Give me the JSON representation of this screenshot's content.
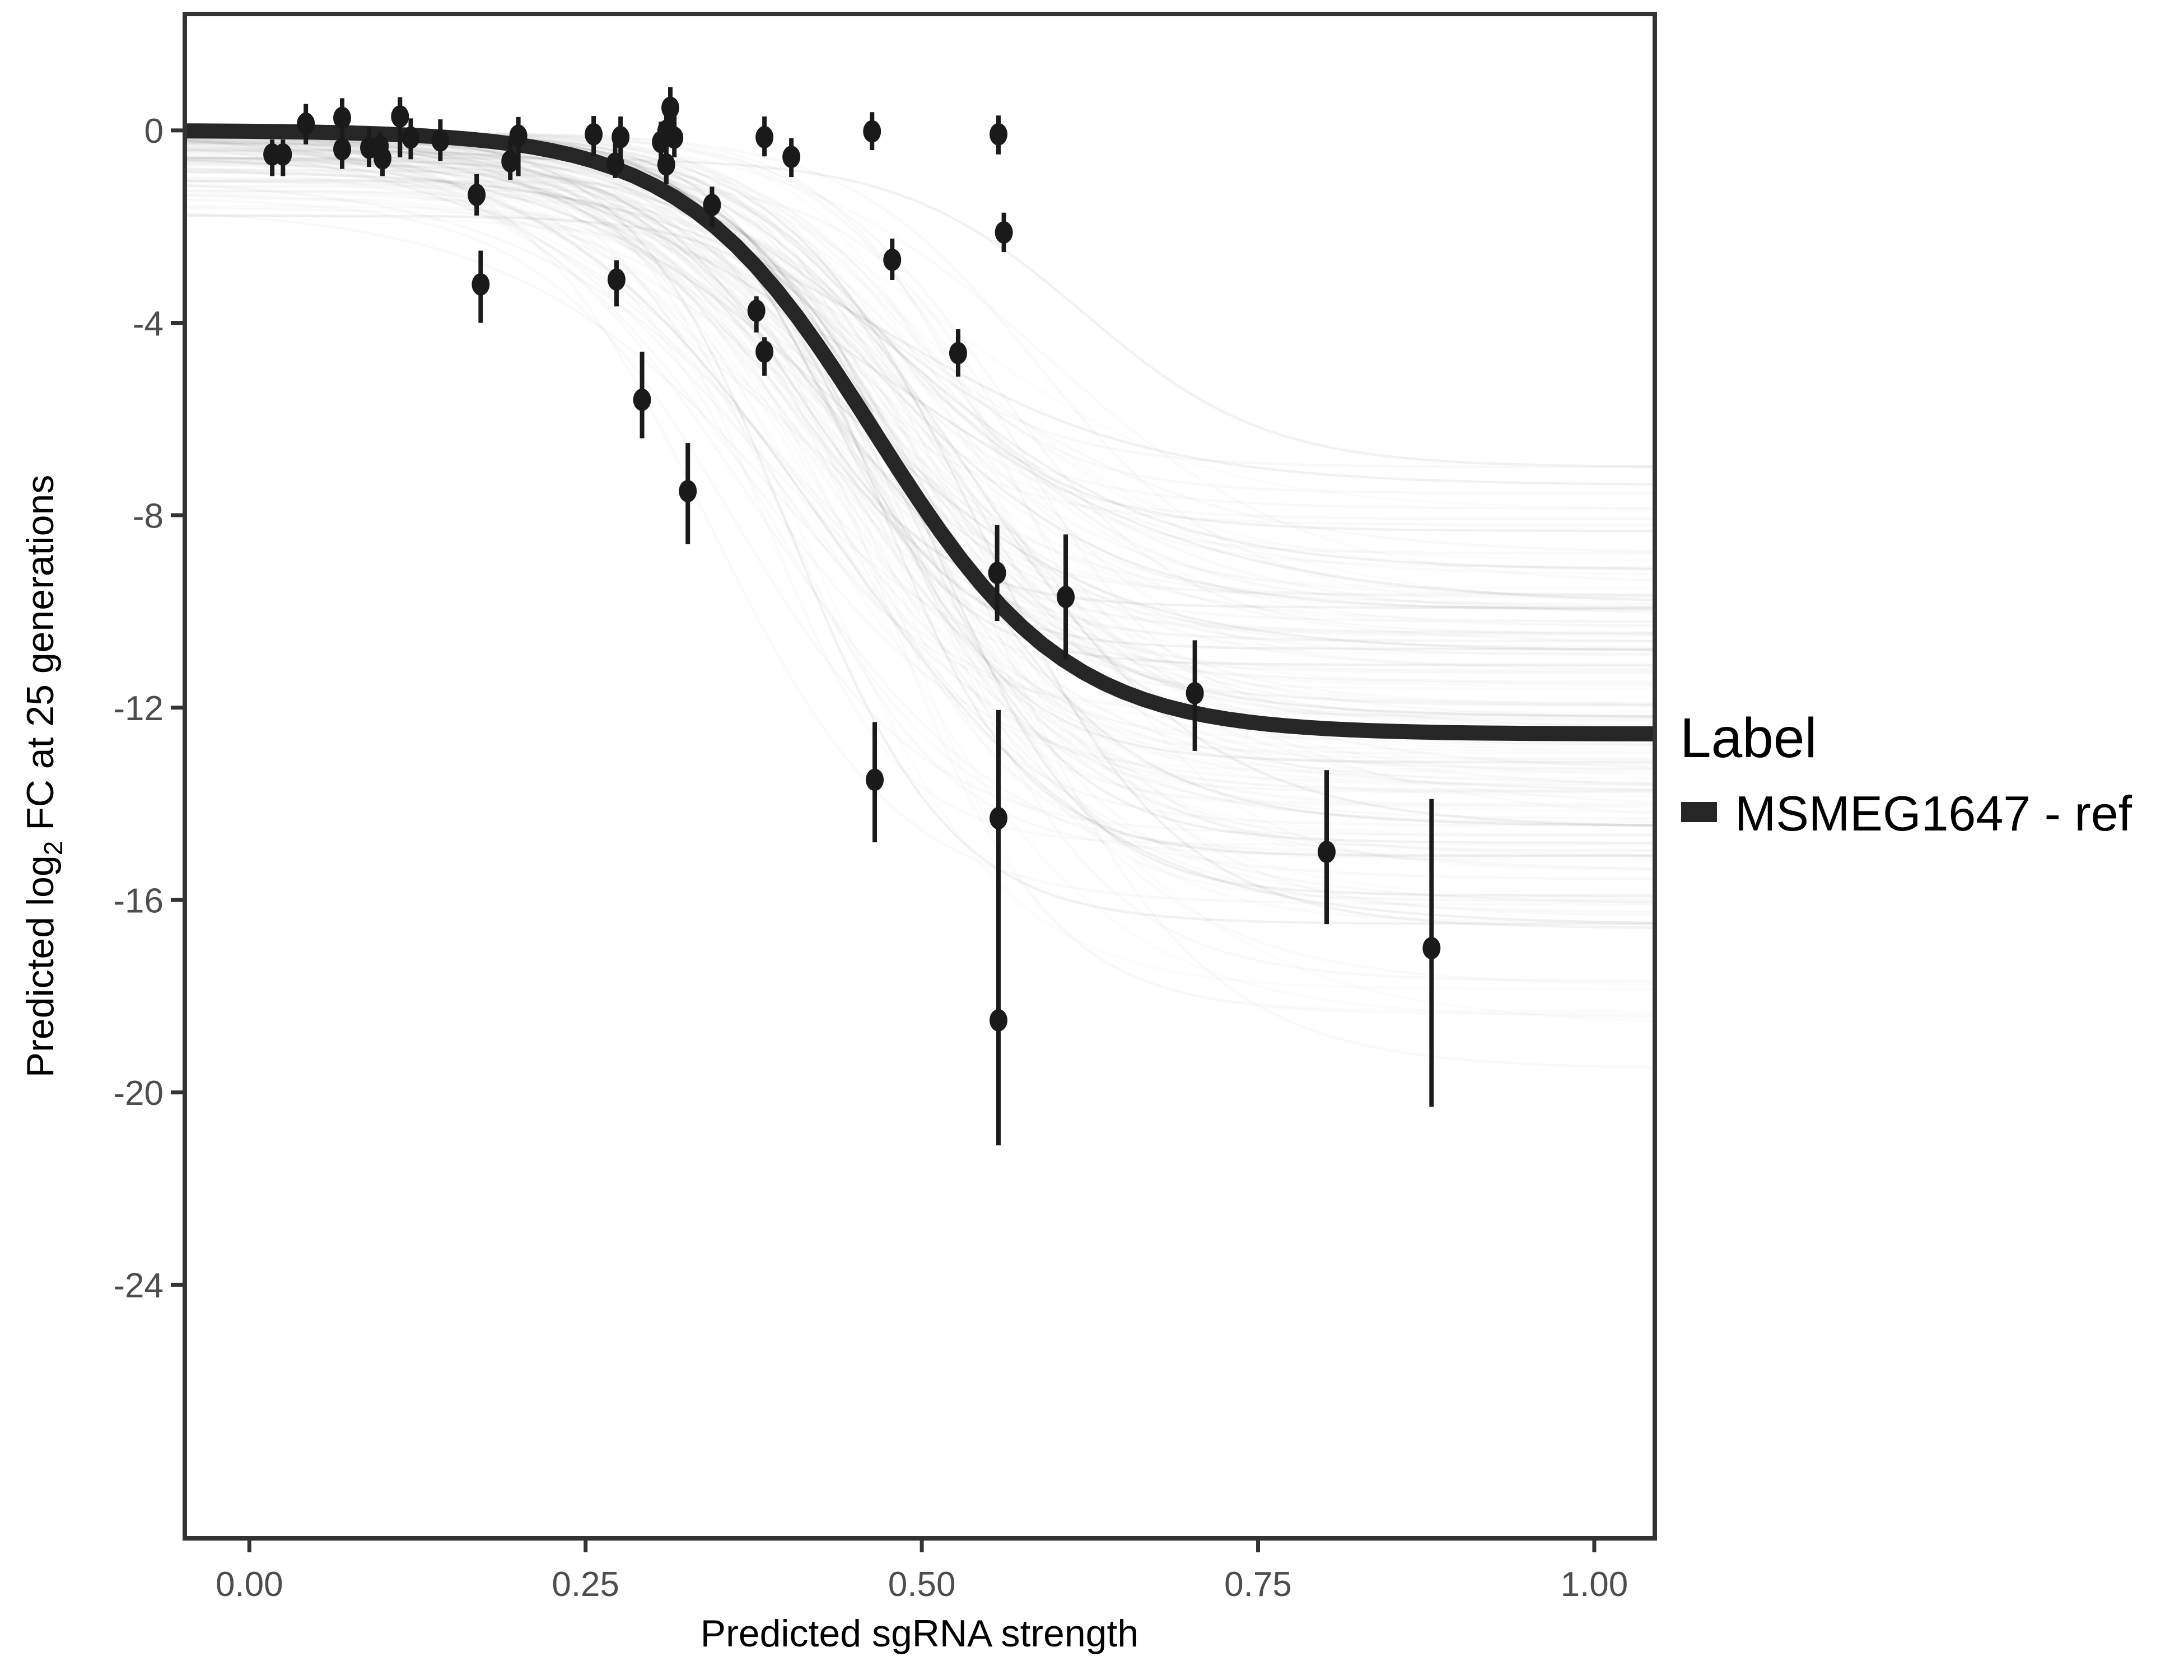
{
  "figure": {
    "kind": "dose-response fit plot",
    "background": "#ffffff"
  },
  "legend": {
    "title": "Label",
    "items": [
      {
        "label": "MSMEG1647 - ref",
        "key_color": "#262626",
        "key_shape": "thick-line"
      }
    ]
  },
  "colors": {
    "point": "#1a1a1a",
    "error_bar": "#1a1a1a",
    "reference_curve": "#262626",
    "posterior_line": "#000000",
    "panel_border": "#333333",
    "tick_mark": "#333333",
    "tick_label": "#4d4d4d",
    "axis_title": "#000000",
    "background": "#ffffff"
  },
  "chart_data": {
    "type": "line",
    "subtype": "logistic fit with scatter point-ranges and posterior draw lines",
    "title": "",
    "xlabel": "Predicted sgRNA strength",
    "ylabel": "Predicted log2 FC at 25 generations",
    "ylabel_parts": {
      "pre": "Predicted log",
      "sub": "2",
      "post": " FC at 25 generations"
    },
    "xlim": [
      -0.048,
      1.045
    ],
    "ylim": [
      -29.27,
      2.42
    ],
    "grid": "off",
    "legend_position": "right",
    "x_ticks": {
      "values": [
        0,
        0.25,
        0.5,
        0.75,
        1.0
      ],
      "labels": [
        "0.00",
        "0.25",
        "0.50",
        "0.75",
        "1.00"
      ]
    },
    "y_ticks": {
      "values": [
        0,
        -4,
        -8,
        -12,
        -16,
        -20,
        -24
      ],
      "labels": [
        "0",
        "-4",
        "-8",
        "-12",
        "-16",
        "-20",
        "-24"
      ]
    },
    "reference_curve": {
      "name": "MSMEG1647 - ref",
      "model": "4-parameter logistic",
      "top_asymptote": 0.0,
      "bottom_asymptote": -12.55,
      "midpoint_x": 0.465,
      "slope_k": 14,
      "stroke_width": 27
    },
    "posterior_lines": {
      "description": "ensemble of translucent gray posterior-draw logistic curves",
      "count": 160,
      "seed": 11,
      "top_asymptote": {
        "base": -0.04,
        "tail_spread": 1.8
      },
      "bottom_asymptote": {
        "mean": -12.3,
        "sd": 2.7,
        "min": -19.8,
        "max": -7.0
      },
      "midpoint_x": {
        "mean": 0.46,
        "sd": 0.05,
        "min": 0.34,
        "max": 0.62
      },
      "slope_k": {
        "mean": 13.5,
        "sd": 3.0,
        "min": 8,
        "max": 20
      },
      "stroke_width": 4.5
    },
    "points": [
      {
        "x": 0.017,
        "y": -0.5,
        "lo": -0.19,
        "hi": -0.95
      },
      {
        "x": 0.025,
        "y": -0.5,
        "lo": -0.19,
        "hi": -0.95
      },
      {
        "x": 0.042,
        "y": 0.14,
        "lo": 0.55,
        "hi": -0.29
      },
      {
        "x": 0.069,
        "y": 0.26,
        "lo": 0.67,
        "hi": -0.25
      },
      {
        "x": 0.069,
        "y": -0.39,
        "lo": 0.06,
        "hi": -0.8
      },
      {
        "x": 0.089,
        "y": -0.36,
        "lo": 0.06,
        "hi": -0.76
      },
      {
        "x": 0.097,
        "y": -0.33,
        "lo": -0.02,
        "hi": -0.7
      },
      {
        "x": 0.099,
        "y": -0.58,
        "lo": -0.2,
        "hi": -0.95
      },
      {
        "x": 0.112,
        "y": 0.29,
        "lo": 0.69,
        "hi": -0.56
      },
      {
        "x": 0.12,
        "y": -0.15,
        "lo": 0.25,
        "hi": -0.6
      },
      {
        "x": 0.142,
        "y": -0.21,
        "lo": 0.23,
        "hi": -0.64
      },
      {
        "x": 0.169,
        "y": -1.34,
        "lo": -0.91,
        "hi": -1.77
      },
      {
        "x": 0.172,
        "y": -3.2,
        "lo": -2.5,
        "hi": -4.0
      },
      {
        "x": 0.194,
        "y": -0.64,
        "lo": -0.17,
        "hi": -1.03
      },
      {
        "x": 0.2,
        "y": -0.11,
        "lo": 0.28,
        "hi": -0.95
      },
      {
        "x": 0.256,
        "y": -0.08,
        "lo": 0.3,
        "hi": -0.53
      },
      {
        "x": 0.272,
        "y": -0.69,
        "lo": -0.26,
        "hi": -0.99
      },
      {
        "x": 0.273,
        "y": -3.1,
        "lo": -2.7,
        "hi": -3.66
      },
      {
        "x": 0.276,
        "y": -0.14,
        "lo": 0.29,
        "hi": -0.56
      },
      {
        "x": 0.292,
        "y": -5.6,
        "lo": -4.6,
        "hi": -6.4
      },
      {
        "x": 0.306,
        "y": -0.24,
        "lo": 0.18,
        "hi": -0.68
      },
      {
        "x": 0.31,
        "y": -0.01,
        "lo": 0.39,
        "hi": -1.11
      },
      {
        "x": 0.31,
        "y": -0.71,
        "lo": -0.33,
        "hi": -1.12
      },
      {
        "x": 0.313,
        "y": 0.47,
        "lo": 0.9,
        "hi": 0.16
      },
      {
        "x": 0.316,
        "y": -0.15,
        "lo": 0.29,
        "hi": -0.56
      },
      {
        "x": 0.326,
        "y": -7.5,
        "lo": -6.5,
        "hi": -8.6
      },
      {
        "x": 0.344,
        "y": -1.55,
        "lo": -1.17,
        "hi": -2.02
      },
      {
        "x": 0.377,
        "y": -3.75,
        "lo": -3.45,
        "hi": -4.2
      },
      {
        "x": 0.383,
        "y": -0.14,
        "lo": 0.29,
        "hi": -0.54
      },
      {
        "x": 0.383,
        "y": -4.6,
        "lo": -4.3,
        "hi": -5.1
      },
      {
        "x": 0.403,
        "y": -0.55,
        "lo": -0.16,
        "hi": -0.97
      },
      {
        "x": 0.463,
        "y": -0.02,
        "lo": 0.38,
        "hi": -0.41
      },
      {
        "x": 0.465,
        "y": -13.5,
        "lo": -12.3,
        "hi": -14.8
      },
      {
        "x": 0.478,
        "y": -2.69,
        "lo": -2.25,
        "hi": -3.11
      },
      {
        "x": 0.527,
        "y": -4.63,
        "lo": -4.13,
        "hi": -5.12
      },
      {
        "x": 0.557,
        "y": -0.08,
        "lo": 0.31,
        "hi": -0.5
      },
      {
        "x": 0.561,
        "y": -2.12,
        "lo": -1.71,
        "hi": -2.53
      },
      {
        "x": 0.556,
        "y": -9.2,
        "lo": -8.2,
        "hi": -10.2
      },
      {
        "x": 0.557,
        "y": -14.3,
        "lo": -12.05,
        "hi": -21.1
      },
      {
        "x": 0.557,
        "y": -18.5,
        "lo": null,
        "hi": null
      },
      {
        "x": 0.607,
        "y": -9.7,
        "lo": -8.4,
        "hi": -11.0
      },
      {
        "x": 0.703,
        "y": -11.7,
        "lo": -10.6,
        "hi": -12.9
      },
      {
        "x": 0.801,
        "y": -15.0,
        "lo": -13.3,
        "hi": -16.5
      },
      {
        "x": 0.879,
        "y": -17.0,
        "lo": -13.9,
        "hi": -20.3
      }
    ]
  }
}
